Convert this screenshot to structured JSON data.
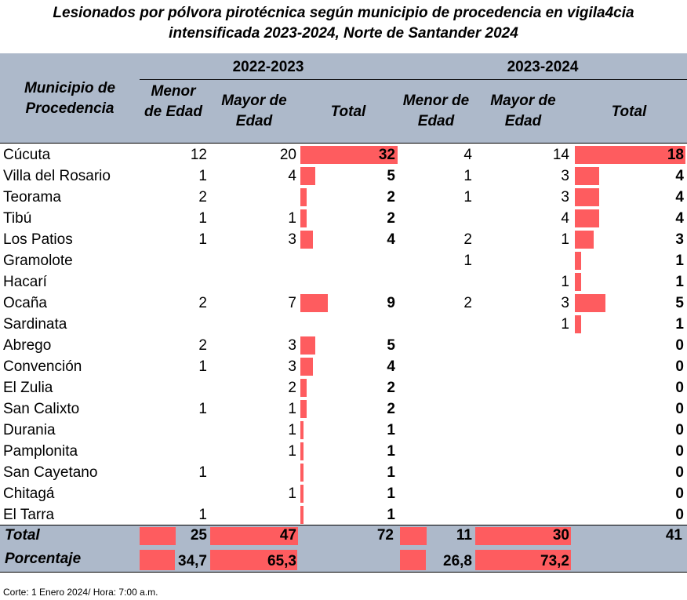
{
  "title": {
    "line1": "Lesionados por pólvora pirotécnica según municipio de procedencia en vigila4cia",
    "line2": "intensificada 2023-2024, Norte de Santander 2024"
  },
  "header": {
    "municipio": "Municipio de Procedencia",
    "period1": "2022-2023",
    "period2": "2023-2024",
    "p1_menor": "Menor de Edad",
    "p1_mayor": "Mayor de Edad",
    "p1_total": "Total",
    "p2_menor": "Menor de Edad",
    "p2_mayor": "Mayor de Edad",
    "p2_total": "Total"
  },
  "bar_color": "#fe5c5f",
  "header_color": "#adb9ca",
  "rows": [
    {
      "name": "Cúcuta",
      "m1": "12",
      "a1": "20",
      "t1": "32",
      "m2": "4",
      "a2": "14",
      "t2": "18",
      "t1v": 32,
      "t2v": 18
    },
    {
      "name": "Villa del Rosario",
      "m1": "1",
      "a1": "4",
      "t1": "5",
      "m2": "1",
      "a2": "3",
      "t2": "4",
      "t1v": 5,
      "t2v": 4
    },
    {
      "name": "Teorama",
      "m1": "2",
      "a1": "",
      "t1": "2",
      "m2": "1",
      "a2": "3",
      "t2": "4",
      "t1v": 2,
      "t2v": 4
    },
    {
      "name": "Tibú",
      "m1": "1",
      "a1": "1",
      "t1": "2",
      "m2": "",
      "a2": "4",
      "t2": "4",
      "t1v": 2,
      "t2v": 4
    },
    {
      "name": "Los Patios",
      "m1": "1",
      "a1": "3",
      "t1": "4",
      "m2": "2",
      "a2": "1",
      "t2": "3",
      "t1v": 4,
      "t2v": 3
    },
    {
      "name": "Gramolote",
      "m1": "",
      "a1": "",
      "t1": "",
      "m2": "1",
      "a2": "",
      "t2": "1",
      "t1v": 0,
      "t2v": 1
    },
    {
      "name": "Hacarí",
      "m1": "",
      "a1": "",
      "t1": "",
      "m2": "",
      "a2": "1",
      "t2": "1",
      "t1v": 0,
      "t2v": 1
    },
    {
      "name": "Ocaña",
      "m1": "2",
      "a1": "7",
      "t1": "9",
      "m2": "2",
      "a2": "3",
      "t2": "5",
      "t1v": 9,
      "t2v": 5
    },
    {
      "name": "Sardinata",
      "m1": "",
      "a1": "",
      "t1": "",
      "m2": "",
      "a2": "1",
      "t2": "1",
      "t1v": 0,
      "t2v": 1
    },
    {
      "name": "Abrego",
      "m1": "2",
      "a1": "3",
      "t1": "5",
      "m2": "",
      "a2": "",
      "t2": "0",
      "t1v": 5,
      "t2v": 0
    },
    {
      "name": "Convención",
      "m1": "1",
      "a1": "3",
      "t1": "4",
      "m2": "",
      "a2": "",
      "t2": "0",
      "t1v": 4,
      "t2v": 0
    },
    {
      "name": "El Zulia",
      "m1": "",
      "a1": "2",
      "t1": "2",
      "m2": "",
      "a2": "",
      "t2": "0",
      "t1v": 2,
      "t2v": 0
    },
    {
      "name": "San Calixto",
      "m1": "1",
      "a1": "1",
      "t1": "2",
      "m2": "",
      "a2": "",
      "t2": "0",
      "t1v": 2,
      "t2v": 0
    },
    {
      "name": "Durania",
      "m1": "",
      "a1": "1",
      "t1": "1",
      "m2": "",
      "a2": "",
      "t2": "0",
      "t1v": 1,
      "t2v": 0
    },
    {
      "name": "Pamplonita",
      "m1": "",
      "a1": "1",
      "t1": "1",
      "m2": "",
      "a2": "",
      "t2": "0",
      "t1v": 1,
      "t2v": 0
    },
    {
      "name": "San Cayetano",
      "m1": "1",
      "a1": "",
      "t1": "1",
      "m2": "",
      "a2": "",
      "t2": "0",
      "t1v": 1,
      "t2v": 0
    },
    {
      "name": "Chitagá",
      "m1": "",
      "a1": "1",
      "t1": "1",
      "m2": "",
      "a2": "",
      "t2": "0",
      "t1v": 1,
      "t2v": 0
    },
    {
      "name": "El Tarra",
      "m1": "1",
      "a1": "",
      "t1": "1",
      "m2": "",
      "a2": "",
      "t2": "0",
      "t1v": 1,
      "t2v": 0
    }
  ],
  "totals": {
    "label": "Total",
    "m1": "25",
    "a1": "47",
    "t1": "72",
    "m2": "11",
    "a2": "30",
    "t2": "41"
  },
  "percent": {
    "label": "Porcentaje",
    "m1": "34,7",
    "a1": "65,3",
    "m2": "26,8",
    "a2": "73,2",
    "m1v": 34.7,
    "a1v": 65.3,
    "m2v": 26.8,
    "a2v": 73.2
  },
  "note": "Corte: 1 Enero 2024/ Hora: 7:00 a.m."
}
